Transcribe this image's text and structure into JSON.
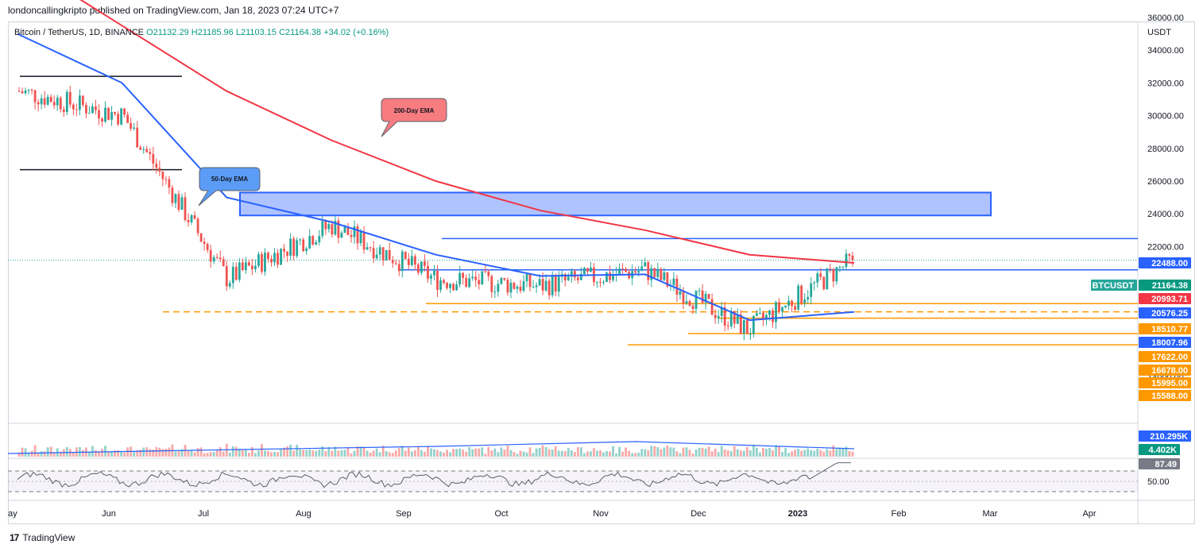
{
  "header": {
    "publisher": "londoncallingkripto published on TradingView.com, Jan 18, 2023 07:24 UTC+7"
  },
  "legend": {
    "symbol": "Bitcoin / TetherUS, 1D, BINANCE",
    "open": "O21132.29",
    "high": "H21185.96",
    "low": "L21103.15",
    "close": "C21164.38",
    "change": "+34.02 (+0.16%)"
  },
  "price_axis": {
    "currency": "USDT",
    "ticks": [
      "36000.00",
      "34000.00",
      "32000.00",
      "30000.00",
      "28000.00",
      "26000.00",
      "24000.00",
      "22000.00",
      "14000.00"
    ]
  },
  "time_axis": {
    "labels": [
      "ay",
      "Jun",
      "Jul",
      "Aug",
      "Sep",
      "Oct",
      "Nov",
      "Dec",
      "2023",
      "Feb",
      "Mar",
      "Apr"
    ]
  },
  "badges": [
    {
      "text": "22488.00",
      "color": "#2962ff"
    },
    {
      "text": "21164.38",
      "color": "#089981"
    },
    {
      "text": "20993.71",
      "color": "#f23645"
    },
    {
      "text": "20576.25",
      "color": "#2962ff"
    },
    {
      "text": "18510.77",
      "color": "#ff9800"
    },
    {
      "text": "18007.96",
      "color": "#2962ff"
    },
    {
      "text": "17622.00",
      "color": "#ff9800"
    },
    {
      "text": "16678.00",
      "color": "#ff9800"
    },
    {
      "text": "15995.00",
      "color": "#ff9800"
    },
    {
      "text": "15588.00",
      "color": "#ff9800"
    }
  ],
  "symbol_badge": "BTCUSDT",
  "volume_badges": [
    {
      "text": "210.295K",
      "color": "#2962ff"
    },
    {
      "text": "4.402K",
      "color": "#089981"
    }
  ],
  "rsi_badges": [
    {
      "text": "87.49",
      "color": "#787b86"
    }
  ],
  "rsi_axis_label": "50.00",
  "callouts": {
    "ema200": "200-Day EMA",
    "ema50": "50-Day EMA"
  },
  "footer": {
    "brand": "TradingView"
  },
  "colors": {
    "up": "#26a69a",
    "down": "#ef5350",
    "ema200": "#f23645",
    "ema50": "#2962ff",
    "level": "#ff9800",
    "zone": "#2962ff"
  },
  "chart_data": {
    "type": "line",
    "title": "Bitcoin / TetherUS, 1D, BINANCE",
    "xlabel": "",
    "ylabel": "USDT",
    "ylim": [
      14000,
      36000
    ],
    "x": [
      "May",
      "Jun",
      "Jul",
      "Aug",
      "Sep",
      "Oct",
      "Nov",
      "Dec",
      "2023"
    ],
    "series": [
      {
        "name": "200-Day EMA",
        "values": [
          39500,
          35500,
          31500,
          28500,
          26000,
          24200,
          23000,
          21500,
          21000
        ]
      },
      {
        "name": "50-Day EMA",
        "values": [
          35000,
          32000,
          25000,
          23500,
          21500,
          20200,
          20300,
          17500,
          18000
        ]
      }
    ],
    "price_close_approx": [
      31500,
      30000,
      20000,
      23300,
      20000,
      19600,
      20600,
      16900,
      21164
    ],
    "levels": [
      22488.0,
      20576.25,
      18510.77,
      18007.96,
      17622.0,
      16678.0,
      15995.0,
      15588.0
    ],
    "last_close": 21164.38,
    "ema200_last": 20993.71,
    "ema50_last": 18007.96,
    "rsi_last": 87.49,
    "volume_last": "210.295K",
    "volume_ma_last": "4.402K",
    "range_box": {
      "low": 26700,
      "high": 32400
    },
    "supply_zone": {
      "low": 23900,
      "high": 25300
    },
    "grid": false,
    "legend": "top-left"
  }
}
